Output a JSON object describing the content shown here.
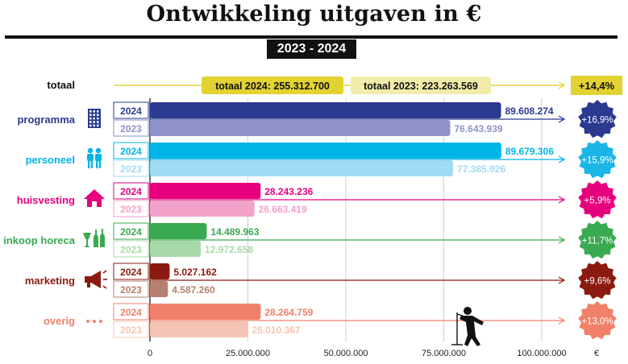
{
  "title": "Ontwikkeling uitgaven in €",
  "period": "2023  -  2024",
  "chart_data": {
    "type": "bar",
    "orientation": "horizontal",
    "xlim": [
      0,
      105000000
    ],
    "x_ticks": [
      0,
      25000000,
      50000000,
      75000000,
      100000000
    ],
    "x_tick_labels": [
      "0",
      "25.000.000",
      "50.000.000",
      "75.000.000",
      "100.000.000"
    ],
    "x_unit": "€",
    "grid": "vertical",
    "total": {
      "label": "totaal",
      "label_2024": "totaal 2024: 255.312.700",
      "label_2023": "totaal 2023: 223.263.569",
      "value_2024": 255312700,
      "value_2023": 223263569,
      "change": "+14,4%",
      "color": "#e2d332",
      "color_light": "#f2ecaa"
    },
    "categories": [
      {
        "name": "programma",
        "icon": "building-icon",
        "year_2024": "2024",
        "year_2023": "2023",
        "value_2024": 89608274,
        "label_2024": "89.608.274",
        "value_2023": 76643939,
        "label_2023": "76.643.939",
        "change": "+16,9%",
        "color": "#2b3990",
        "color_light": "#8e92c8",
        "badge_color": "#2b3990"
      },
      {
        "name": "personeel",
        "icon": "people-icon",
        "year_2024": "2024",
        "year_2023": "2023",
        "value_2024": 89679306,
        "label_2024": "89.679.306",
        "value_2023": 77385926,
        "label_2023": "77.385.926",
        "change": "+15,9%",
        "color": "#00b4e6",
        "color_light": "#9fdcf3",
        "badge_color": "#1cb5e8"
      },
      {
        "name": "huisvesting",
        "icon": "house-icon",
        "year_2024": "2024",
        "year_2023": "2023",
        "value_2024": 28243236,
        "label_2024": "28.243.236",
        "value_2023": 26663419,
        "label_2023": "26.663.419",
        "change": "+5,9%",
        "color": "#e6007e",
        "color_light": "#f2a2c8",
        "badge_color": "#e6007e"
      },
      {
        "name": "inkoop horeca",
        "icon": "bottles-glass-icon",
        "year_2024": "2024",
        "year_2023": "2023",
        "value_2024": 14489963,
        "label_2024": "14.489.963",
        "value_2023": 12972658,
        "label_2023": "12.972.658",
        "change": "+11,7%",
        "color": "#3aaa52",
        "color_light": "#a8d9a8",
        "badge_color": "#3aaa52"
      },
      {
        "name": "marketing",
        "icon": "megaphone-icon",
        "year_2024": "2024",
        "year_2023": "2023",
        "value_2024": 5027162,
        "label_2024": "5.027.162",
        "value_2023": 4587260,
        "label_2023": "4.587.260",
        "change": "+9,6%",
        "color": "#8b1a10",
        "color_light": "#b5806f",
        "badge_color": "#8b1a10"
      },
      {
        "name": "overig",
        "icon": "dots-icon",
        "year_2024": "2024",
        "year_2023": "2023",
        "value_2024": 28264759,
        "label_2024": "28.264.759",
        "value_2023": 25010367,
        "label_2023": "25.010.367",
        "change": "+13,0%",
        "color": "#f0806a",
        "color_light": "#f6c4b4",
        "badge_color": "#f0806a"
      }
    ]
  }
}
